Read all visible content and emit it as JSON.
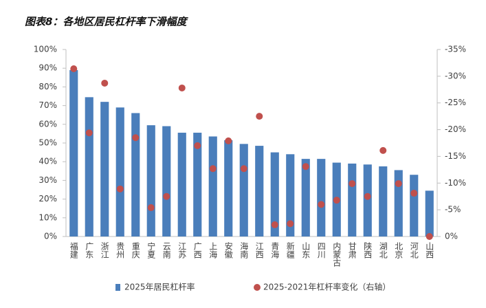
{
  "chart_data": {
    "type": "bar-scatter",
    "title": "图表8：各地区居民杠杆率下滑幅度",
    "categories": [
      "福建",
      "广东",
      "浙江",
      "贵州",
      "重庆",
      "宁夏",
      "云南",
      "江苏",
      "广西",
      "上海",
      "安徽",
      "海南",
      "江西",
      "青海",
      "新疆",
      "山东",
      "四川",
      "内蒙古",
      "甘肃",
      "陕西",
      "湖北",
      "北京",
      "河北",
      "山西"
    ],
    "series": [
      {
        "name": "2025年居民杠杆率",
        "type": "bar",
        "color": "#4a7ebb",
        "values": [
          89,
          74.5,
          72,
          69,
          66,
          59.5,
          59,
          55.5,
          55.5,
          53.5,
          51.5,
          49.5,
          48.5,
          45,
          44,
          41.5,
          41.5,
          39.5,
          39,
          38.5,
          37.5,
          35.5,
          33,
          24.5
        ]
      },
      {
        "name": "2025-2021年杠杆率变化（右轴）",
        "type": "scatter",
        "axis": "y2",
        "color": "#c0504d",
        "values": [
          -31.4,
          -19.4,
          -28.7,
          -8.9,
          -18.5,
          -5.4,
          -7.5,
          -27.8,
          -17.0,
          -12.7,
          -17.9,
          -12.7,
          -22.5,
          -2.2,
          -2.4,
          -13.1,
          -6.0,
          -6.8,
          -9.9,
          -7.5,
          -16.1,
          -9.9,
          -8.1,
          0
        ]
      }
    ],
    "ylim": [
      0,
      100
    ],
    "yticks": [
      {
        "value": 0,
        "label": "0%"
      },
      {
        "value": 10,
        "label": "10%"
      },
      {
        "value": 20,
        "label": "20%"
      },
      {
        "value": 30,
        "label": "30%"
      },
      {
        "value": 40,
        "label": "40%"
      },
      {
        "value": 50,
        "label": "50%"
      },
      {
        "value": 60,
        "label": "60%"
      },
      {
        "value": 70,
        "label": "70%"
      },
      {
        "value": 80,
        "label": "80%"
      },
      {
        "value": 90,
        "label": "90%"
      },
      {
        "value": 100,
        "label": "100%"
      }
    ],
    "y2lim": [
      0,
      -35
    ],
    "y2ticks": [
      {
        "value": 0,
        "label": "0%"
      },
      {
        "value": -5,
        "label": "-5%"
      },
      {
        "value": -10,
        "label": "-10%"
      },
      {
        "value": -15,
        "label": "-15%"
      },
      {
        "value": -20,
        "label": "-20%"
      },
      {
        "value": -25,
        "label": "-25%"
      },
      {
        "value": -30,
        "label": "-30%"
      },
      {
        "value": -35,
        "label": "-35%"
      }
    ]
  }
}
